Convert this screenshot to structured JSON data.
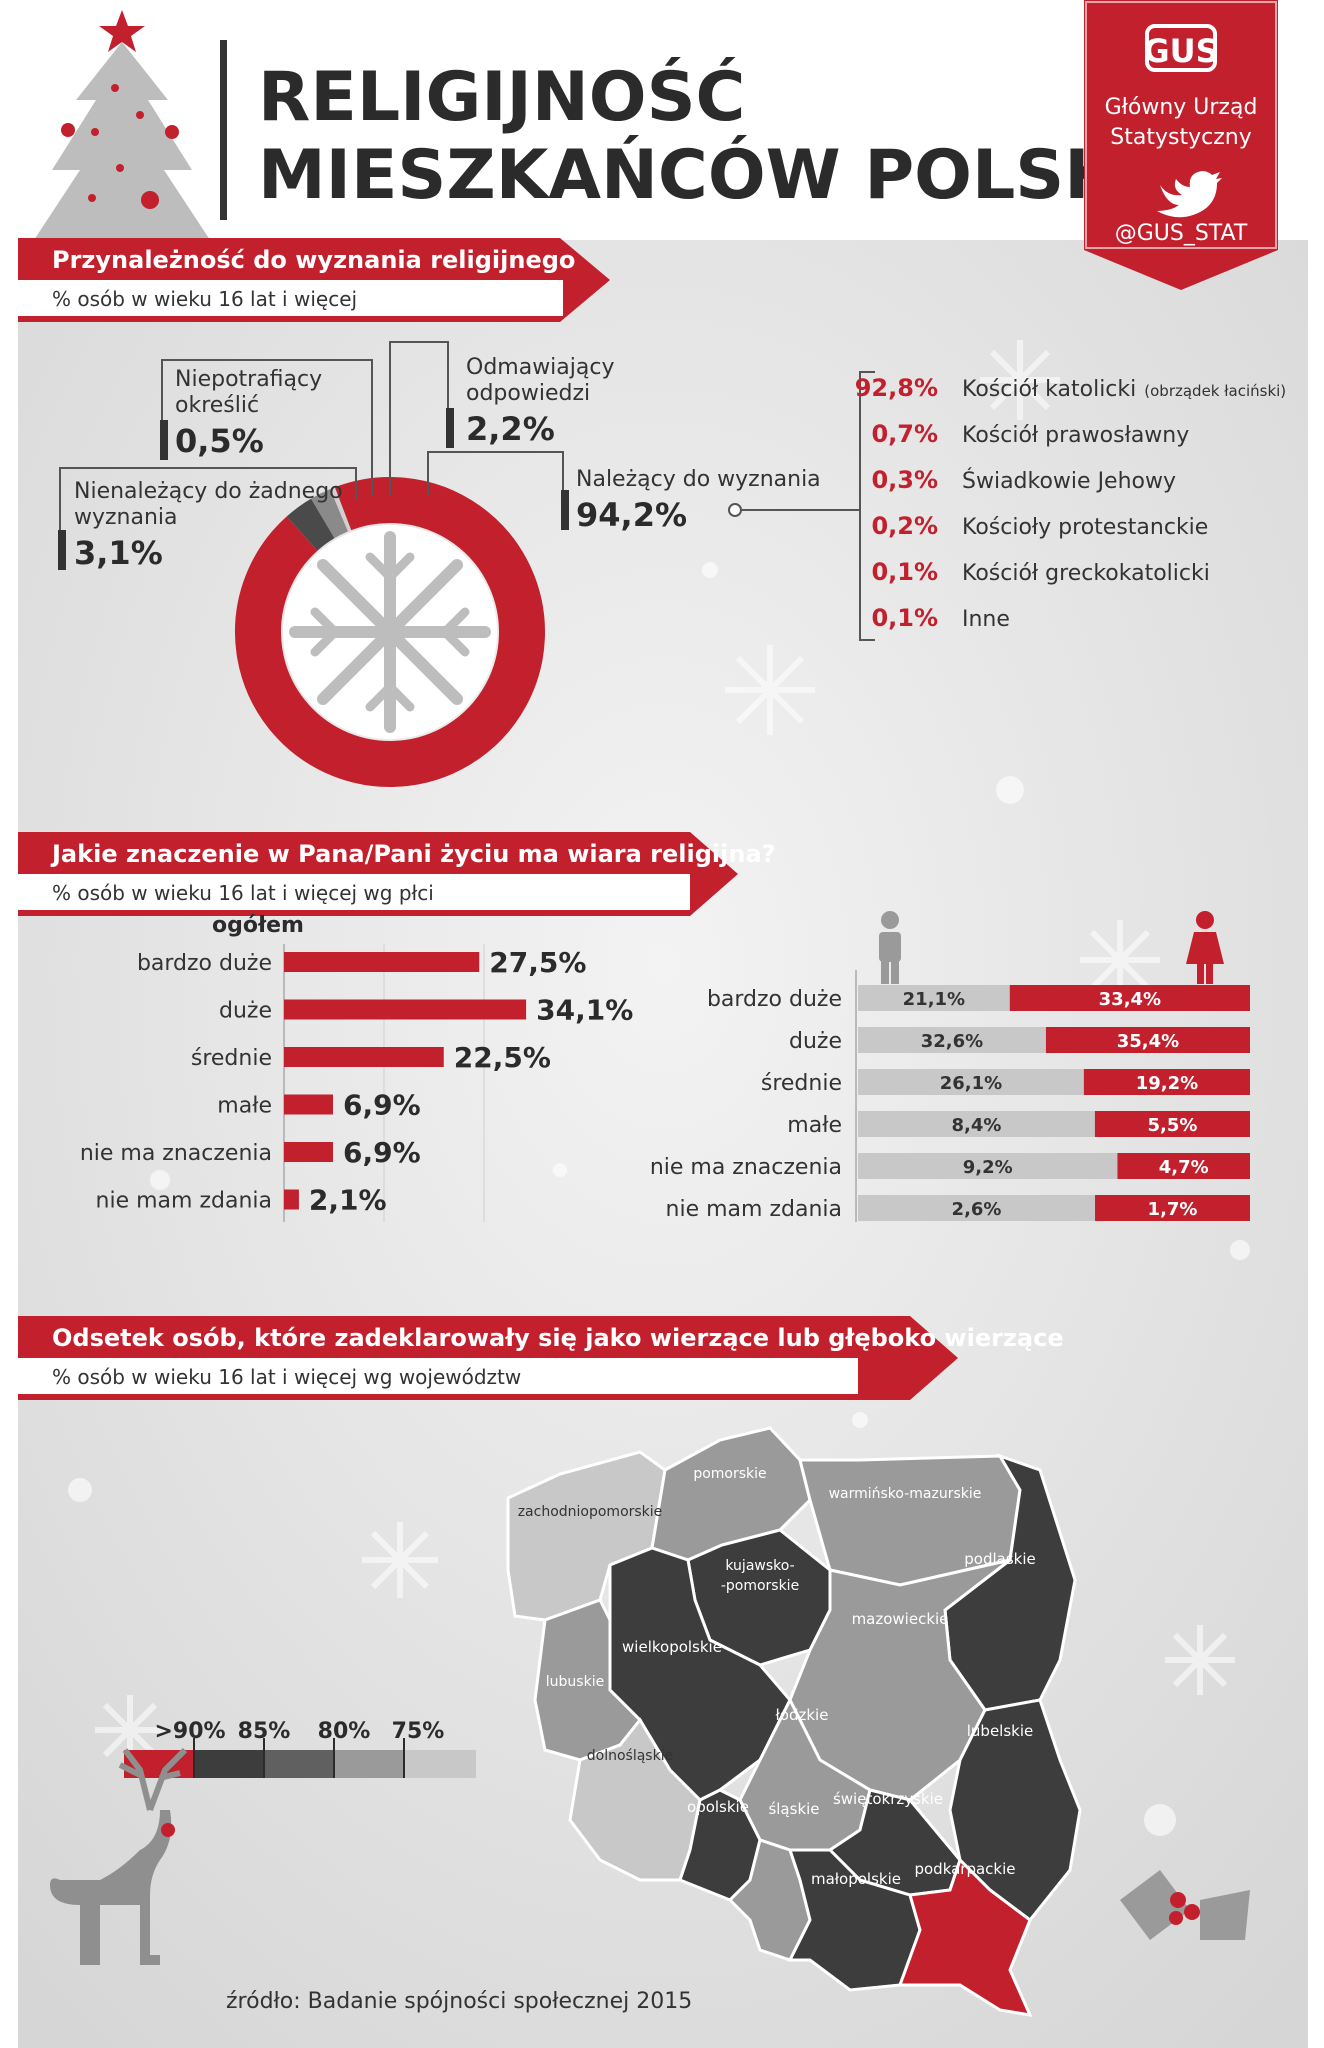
{
  "header": {
    "title_line1": "RELIGIJNOŚĆ",
    "title_line2": "MIESZKAŃCÓW POLSKI"
  },
  "brand": {
    "logo_text": "GUS",
    "name_line1": "Główny Urząd",
    "name_line2": "Statystyczny",
    "twitter_handle": "@GUS_STAT"
  },
  "colors": {
    "red": "#c3202e",
    "dark": "#3d3d3d",
    "gray": "#9a9a9a",
    "light": "#c8c8c8"
  },
  "section1": {
    "title": "Przynależność do wyznania religijnego",
    "subtitle": "% osób w wieku 16 lat i więcej"
  },
  "section2": {
    "title": "Jakie znaczenie w Pana/Pani życiu ma wiara religijna?",
    "subtitle": "% osób w wieku 16 lat i więcej wg płci"
  },
  "section3": {
    "title": "Odsetek osób, które zadeklarowały się jako wierzące lub głęboko wierzące",
    "subtitle": "% osób w wieku 16 lat i więcej wg województw"
  },
  "donut_labels": [
    {
      "label_lines": [
        "Niepotrafiący",
        "określić"
      ],
      "value_label": "0,5%"
    },
    {
      "label_lines": [
        "Odmawiający",
        "odpowiedzi"
      ],
      "value_label": "2,2%"
    },
    {
      "label_lines": [
        "Nienależący do żadnego",
        "wyznania"
      ],
      "value_label": "3,1%"
    },
    {
      "label_lines": [
        "Należący do wyznania"
      ],
      "value_label": "94,2%"
    }
  ],
  "denominations": [
    {
      "value": "92,8%",
      "name": "Kościół katolicki",
      "note": "(obrządek łaciński)"
    },
    {
      "value": "0,7%",
      "name": "Kościół prawosławny",
      "note": ""
    },
    {
      "value": "0,3%",
      "name": "Świadkowie Jehowy",
      "note": ""
    },
    {
      "value": "0,2%",
      "name": "Kościoły protestanckie",
      "note": ""
    },
    {
      "value": "0,1%",
      "name": "Kościół greckokatolicki",
      "note": ""
    },
    {
      "value": "0,1%",
      "name": "Inne",
      "note": ""
    }
  ],
  "overall_header": "ogółem",
  "legend_map": {
    "labels": [
      ">90%",
      "85%",
      "80%",
      "75%"
    ]
  },
  "regions": [
    {
      "id": "zachodniopomorskie",
      "label": "zachodniopomorskie",
      "shade": "light"
    },
    {
      "id": "pomorskie",
      "label": "pomorskie",
      "shade": "gray"
    },
    {
      "id": "warminsko",
      "label": "warmińsko-mazurskie",
      "shade": "gray"
    },
    {
      "id": "podlaskie",
      "label": "podlaskie",
      "shade": "dark"
    },
    {
      "id": "kujawsko",
      "label_lines": [
        "kujawsko-",
        "-pomorskie"
      ],
      "shade": "dark"
    },
    {
      "id": "mazowieckie",
      "label": "mazowieckie",
      "shade": "gray"
    },
    {
      "id": "wielkopolskie",
      "label": "wielkopolskie",
      "shade": "dark"
    },
    {
      "id": "lubuskie",
      "label": "lubuskie",
      "shade": "gray"
    },
    {
      "id": "lodzkie",
      "label": "łódzkie",
      "shade": "gray"
    },
    {
      "id": "lubelskie",
      "label": "lubelskie",
      "shade": "dark"
    },
    {
      "id": "dolnoslaskie",
      "label": "dolnośląskie",
      "shade": "light"
    },
    {
      "id": "opolskie",
      "label": "opolskie",
      "shade": "dark"
    },
    {
      "id": "slaskie",
      "label": "śląskie",
      "shade": "gray"
    },
    {
      "id": "swietokrzyskie",
      "label": "świętokrzyskie",
      "shade": "dark"
    },
    {
      "id": "malopolskie",
      "label": "małopolskie",
      "shade": "dark"
    },
    {
      "id": "podkarpackie",
      "label": "podkarpackie",
      "shade": "red"
    }
  ],
  "source": "źródło: Badanie spójności społecznej 2015",
  "chart_data": [
    {
      "type": "pie",
      "categories": [
        "Należący do wyznania",
        "Nienależący do żadnego wyznania",
        "Odmawiający odpowiedzi",
        "Niepotrafiący określić"
      ],
      "values": [
        94.2,
        3.1,
        2.2,
        0.5
      ],
      "title": "Przynależność do wyznania religijnego"
    },
    {
      "type": "bar",
      "title": "ogółem",
      "categories": [
        "bardzo duże",
        "duże",
        "średnie",
        "małe",
        "nie ma znaczenia",
        "nie mam zdania"
      ],
      "values": [
        27.5,
        34.1,
        22.5,
        6.9,
        6.9,
        2.1
      ],
      "value_labels": [
        "27,5%",
        "34,1%",
        "22,5%",
        "6,9%",
        "6,9%",
        "2,1%"
      ]
    },
    {
      "type": "bar",
      "categories": [
        "bardzo duże",
        "duże",
        "średnie",
        "małe",
        "nie ma znaczenia",
        "nie mam zdania"
      ],
      "series": [
        {
          "name": "mężczyźni",
          "values": [
            21.1,
            32.6,
            26.1,
            8.4,
            9.2,
            2.6
          ],
          "value_labels": [
            "21,1%",
            "32,6%",
            "26,1%",
            "8,4%",
            "9,2%",
            "2,6%"
          ]
        },
        {
          "name": "kobiety",
          "values": [
            33.4,
            35.4,
            19.2,
            5.5,
            4.7,
            1.7
          ],
          "value_labels": [
            "33,4%",
            "35,4%",
            "19,2%",
            "5,5%",
            "4,7%",
            "1,7%"
          ]
        }
      ]
    }
  ]
}
